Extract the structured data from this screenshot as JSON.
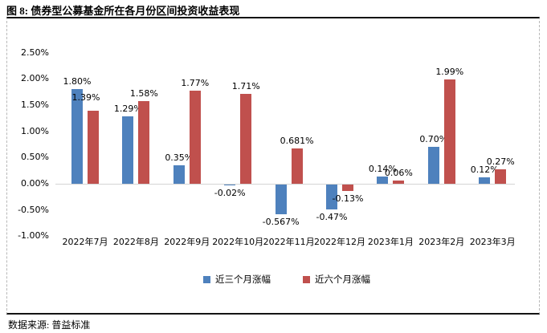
{
  "title": "图 8: 债券型公募基金所在各月份区间投资收益表现",
  "source": "数据来源: 普益标准",
  "colors": {
    "series_3m": "#4E81BD",
    "series_6m": "#C0504D",
    "zero_line": "#D4D4D4",
    "frame_solid": "#141414",
    "frame_dashed": "#B8B8B8"
  },
  "chart_data": {
    "type": "bar",
    "title": "图 8: 债券型公募基金所在各月份区间投资收益表现",
    "categories": [
      "2022年7月",
      "2022年8月",
      "2022年9月",
      "2022年10月",
      "2022年11月",
      "2022年12月",
      "2023年1月",
      "2023年2月",
      "2023年3月"
    ],
    "series": [
      {
        "name": "近三个月涨幅",
        "color": "#4E81BD",
        "values": [
          1.8,
          1.29,
          0.35,
          -0.02,
          -0.567,
          -0.47,
          0.14,
          0.7,
          0.12
        ],
        "labels": [
          "1.80%",
          "1.29%",
          "0.35%",
          "-0.02%",
          "-0.567%",
          "-0.47%",
          "0.14%",
          "0.70%",
          "0.12%"
        ]
      },
      {
        "name": "近六个月涨幅",
        "color": "#C0504D",
        "values": [
          1.39,
          1.58,
          1.77,
          1.71,
          0.681,
          -0.13,
          0.06,
          1.99,
          0.27
        ],
        "labels": [
          "1.39%",
          "1.58%",
          "1.77%",
          "1.71%",
          "0.681%",
          "-0.13%",
          "0.06%",
          "1.99%",
          "0.27%"
        ]
      }
    ],
    "yticks": [
      "2.50%",
      "2.00%",
      "1.50%",
      "1.00%",
      "0.50%",
      "0.00%",
      "-0.50%",
      "-1.00%"
    ],
    "ytick_step": 0.5,
    "ylim": [
      -1.0,
      2.5
    ],
    "grid": false,
    "legend_position": "bottom"
  }
}
